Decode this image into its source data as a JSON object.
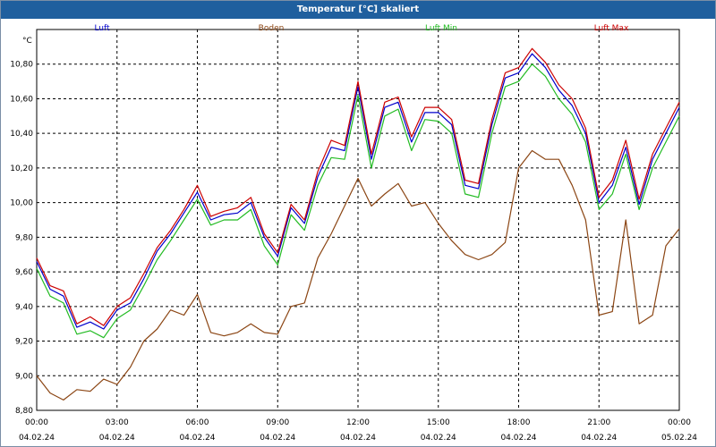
{
  "window": {
    "title": "Temperatur [°C] skaliert"
  },
  "chart_data": {
    "type": "line",
    "ylabel": "°C",
    "ylim": [
      8.8,
      11.0
    ],
    "yticks": [
      8.8,
      9.0,
      9.2,
      9.4,
      9.6,
      9.8,
      10.0,
      10.2,
      10.4,
      10.6,
      10.8
    ],
    "ytick_labels": [
      "8,80",
      "9,00",
      "9,20",
      "9,40",
      "9,60",
      "9,80",
      "10,00",
      "10,20",
      "10,40",
      "10,60",
      "10,80"
    ],
    "xlim": [
      0,
      24
    ],
    "xticks": [
      0,
      3,
      6,
      9,
      12,
      15,
      18,
      21,
      24
    ],
    "xtick_labels": [
      {
        "time": "00:00",
        "date": "04.02.24"
      },
      {
        "time": "03:00",
        "date": "04.02.24"
      },
      {
        "time": "06:00",
        "date": "04.02.24"
      },
      {
        "time": "09:00",
        "date": "04.02.24"
      },
      {
        "time": "12:00",
        "date": "04.02.24"
      },
      {
        "time": "15:00",
        "date": "04.02.24"
      },
      {
        "time": "18:00",
        "date": "04.02.24"
      },
      {
        "time": "21:00",
        "date": "04.02.24"
      },
      {
        "time": "00:00",
        "date": "05.02.24"
      }
    ],
    "grid": true,
    "legend_position": "top",
    "series": [
      {
        "name": "Luft",
        "color": "#0000cc",
        "x": [
          0,
          0.5,
          1,
          1.5,
          2,
          2.5,
          3,
          3.5,
          4,
          4.5,
          5,
          5.5,
          6,
          6.5,
          7,
          7.5,
          8,
          8.5,
          9,
          9.5,
          10,
          10.5,
          11,
          11.5,
          12,
          12.5,
          13,
          13.5,
          14,
          14.5,
          15,
          15.5,
          16,
          16.5,
          17,
          17.5,
          18,
          18.5,
          19,
          19.5,
          20,
          20.5,
          21,
          21.5,
          22,
          22.5,
          23,
          23.5,
          24
        ],
        "values": [
          9.66,
          9.5,
          9.46,
          9.28,
          9.31,
          9.27,
          9.38,
          9.42,
          9.56,
          9.72,
          9.82,
          9.94,
          10.06,
          9.9,
          9.93,
          9.94,
          10.0,
          9.8,
          9.69,
          9.97,
          9.88,
          10.15,
          10.32,
          10.3,
          10.67,
          10.25,
          10.55,
          10.58,
          10.35,
          10.52,
          10.52,
          10.45,
          10.1,
          10.08,
          10.45,
          10.72,
          10.75,
          10.86,
          10.78,
          10.65,
          10.56,
          10.4,
          10.0,
          10.1,
          10.32,
          9.99,
          10.25,
          10.4,
          10.55
        ]
      },
      {
        "name": "Boden",
        "color": "#8b4513",
        "x": [
          0,
          0.5,
          1,
          1.5,
          2,
          2.5,
          3,
          3.5,
          4,
          4.5,
          5,
          5.5,
          6,
          6.5,
          7,
          7.5,
          8,
          8.5,
          9,
          9.5,
          10,
          10.5,
          11,
          11.5,
          12,
          12.5,
          13,
          13.5,
          14,
          14.5,
          15,
          15.5,
          16,
          16.5,
          17,
          17.5,
          18,
          18.5,
          19,
          19.5,
          20,
          20.5,
          21,
          21.5,
          22,
          22.5,
          23,
          23.5,
          24
        ],
        "values": [
          9.0,
          8.9,
          8.86,
          8.92,
          8.91,
          8.98,
          8.95,
          9.05,
          9.2,
          9.27,
          9.38,
          9.35,
          9.47,
          9.25,
          9.23,
          9.25,
          9.3,
          9.25,
          9.24,
          9.4,
          9.42,
          9.68,
          9.82,
          9.98,
          10.14,
          9.98,
          10.05,
          10.11,
          9.98,
          10.0,
          9.88,
          9.78,
          9.7,
          9.67,
          9.7,
          9.77,
          10.2,
          10.3,
          10.25,
          10.25,
          10.1,
          9.9,
          9.35,
          9.37,
          9.9,
          9.3,
          9.35,
          9.75,
          9.85
        ]
      },
      {
        "name": "Luft Min",
        "color": "#22bb22",
        "x": [
          0,
          0.5,
          1,
          1.5,
          2,
          2.5,
          3,
          3.5,
          4,
          4.5,
          5,
          5.5,
          6,
          6.5,
          7,
          7.5,
          8,
          8.5,
          9,
          9.5,
          10,
          10.5,
          11,
          11.5,
          12,
          12.5,
          13,
          13.5,
          14,
          14.5,
          15,
          15.5,
          16,
          16.5,
          17,
          17.5,
          18,
          18.5,
          19,
          19.5,
          20,
          20.5,
          21,
          21.5,
          22,
          22.5,
          23,
          23.5,
          24
        ],
        "values": [
          9.62,
          9.46,
          9.42,
          9.24,
          9.26,
          9.22,
          9.33,
          9.38,
          9.52,
          9.67,
          9.78,
          9.9,
          10.02,
          9.87,
          9.9,
          9.9,
          9.96,
          9.75,
          9.64,
          9.93,
          9.84,
          10.1,
          10.26,
          10.25,
          10.62,
          10.2,
          10.5,
          10.54,
          10.3,
          10.48,
          10.47,
          10.4,
          10.05,
          10.03,
          10.4,
          10.67,
          10.7,
          10.8,
          10.73,
          10.6,
          10.51,
          10.35,
          9.96,
          10.05,
          10.28,
          9.96,
          10.2,
          10.35,
          10.5
        ]
      },
      {
        "name": "Luft Max",
        "color": "#cc0000",
        "x": [
          0,
          0.5,
          1,
          1.5,
          2,
          2.5,
          3,
          3.5,
          4,
          4.5,
          5,
          5.5,
          6,
          6.5,
          7,
          7.5,
          8,
          8.5,
          9,
          9.5,
          10,
          10.5,
          11,
          11.5,
          12,
          12.5,
          13,
          13.5,
          14,
          14.5,
          15,
          15.5,
          16,
          16.5,
          17,
          17.5,
          18,
          18.5,
          19,
          19.5,
          20,
          20.5,
          21,
          21.5,
          22,
          22.5,
          23,
          23.5,
          24
        ],
        "values": [
          9.68,
          9.52,
          9.49,
          9.3,
          9.34,
          9.29,
          9.4,
          9.45,
          9.59,
          9.74,
          9.84,
          9.96,
          10.1,
          9.92,
          9.95,
          9.97,
          10.03,
          9.82,
          9.71,
          9.99,
          9.9,
          10.18,
          10.36,
          10.33,
          10.7,
          10.28,
          10.58,
          10.61,
          10.38,
          10.55,
          10.55,
          10.48,
          10.13,
          10.11,
          10.48,
          10.75,
          10.78,
          10.89,
          10.81,
          10.68,
          10.6,
          10.43,
          10.03,
          10.13,
          10.36,
          10.02,
          10.28,
          10.43,
          10.58
        ]
      }
    ]
  }
}
